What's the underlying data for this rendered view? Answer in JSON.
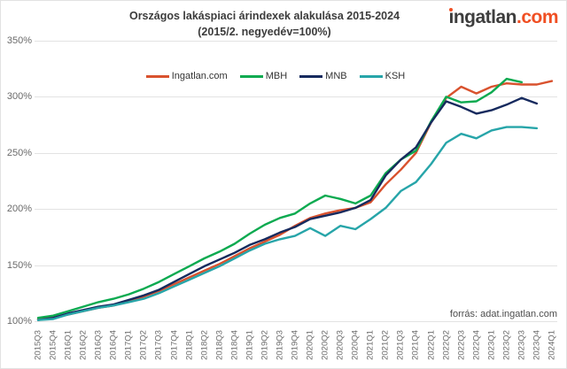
{
  "header": {
    "title_line1": "Országos lakáspiaci árindexek alakulása 2015-2024",
    "title_line2": "(2015/2. negyedév=100%)",
    "logo": {
      "part1": "ingatlan",
      "part2": ".com"
    }
  },
  "source_note": "forrás: adat.ingatlan.com",
  "colors": {
    "logo_text": "#3d3d3d",
    "logo_accent": "#f04f23",
    "title_text": "#3c3c3c",
    "axis_text": "#6b6b6b",
    "gridline": "#e3e3e3",
    "legend_text": "#333333"
  },
  "chart_data": {
    "type": "line",
    "title": "Országos lakáspiaci árindexek alakulása 2015-2024",
    "subtitle": "(2015/2. negyedév=100%)",
    "xlabel": "",
    "ylabel": "",
    "ylim": [
      100,
      350
    ],
    "grid": true,
    "legend_position": "top-center",
    "y_ticks": [
      "100%",
      "150%",
      "200%",
      "250%",
      "300%",
      "350%"
    ],
    "x_categories": [
      "2015Q3",
      "2015Q4",
      "2016Q1",
      "2016Q2",
      "2016Q3",
      "2016Q4",
      "2017Q1",
      "2017Q2",
      "2017Q3",
      "2017Q4",
      "2018Q1",
      "2018Q2",
      "2018Q3",
      "2018Q4",
      "2019Q1",
      "2019Q2",
      "2019Q3",
      "2019Q4",
      "2020Q1",
      "2020Q2",
      "2020Q3",
      "2020Q4",
      "2021Q1",
      "2021Q2",
      "2021Q3",
      "2021Q4",
      "2022Q1",
      "2022Q2",
      "2022Q3",
      "2022Q4",
      "2023Q1",
      "2023Q2",
      "2023Q3",
      "2023Q4",
      "2024Q1"
    ],
    "series": [
      {
        "name": "Ingatlan.com",
        "color": "#d9522e",
        "values": [
          102,
          103,
          106,
          109,
          112,
          114,
          118,
          122,
          127,
          133,
          139,
          145,
          151,
          158,
          165,
          171,
          177,
          185,
          192,
          196,
          199,
          201,
          206,
          222,
          235,
          250,
          277,
          299,
          309,
          303,
          309,
          312,
          311,
          311,
          314
        ]
      },
      {
        "name": "MBH",
        "color": "#0caa50",
        "values": [
          103,
          105,
          109,
          113,
          117,
          120,
          124,
          129,
          135,
          142,
          149,
          156,
          162,
          169,
          178,
          186,
          192,
          196,
          205,
          212,
          209,
          205,
          212,
          232,
          244,
          252,
          278,
          300,
          295,
          296,
          304,
          316,
          313
        ]
      },
      {
        "name": "MNB",
        "color": "#162a5e",
        "values": [
          101,
          103,
          107,
          110,
          113,
          115,
          119,
          123,
          128,
          135,
          142,
          149,
          155,
          161,
          168,
          173,
          179,
          184,
          191,
          194,
          197,
          201,
          208,
          230,
          244,
          255,
          277,
          296,
          291,
          285,
          288,
          293,
          299,
          294
        ]
      },
      {
        "name": "KSH",
        "color": "#27a5a9",
        "values": [
          101,
          102,
          106,
          109,
          112,
          114,
          117,
          120,
          125,
          131,
          137,
          143,
          149,
          156,
          163,
          169,
          173,
          176,
          183,
          176,
          185,
          182,
          191,
          201,
          216,
          224,
          240,
          259,
          267,
          263,
          270,
          273,
          273,
          272
        ]
      }
    ]
  }
}
